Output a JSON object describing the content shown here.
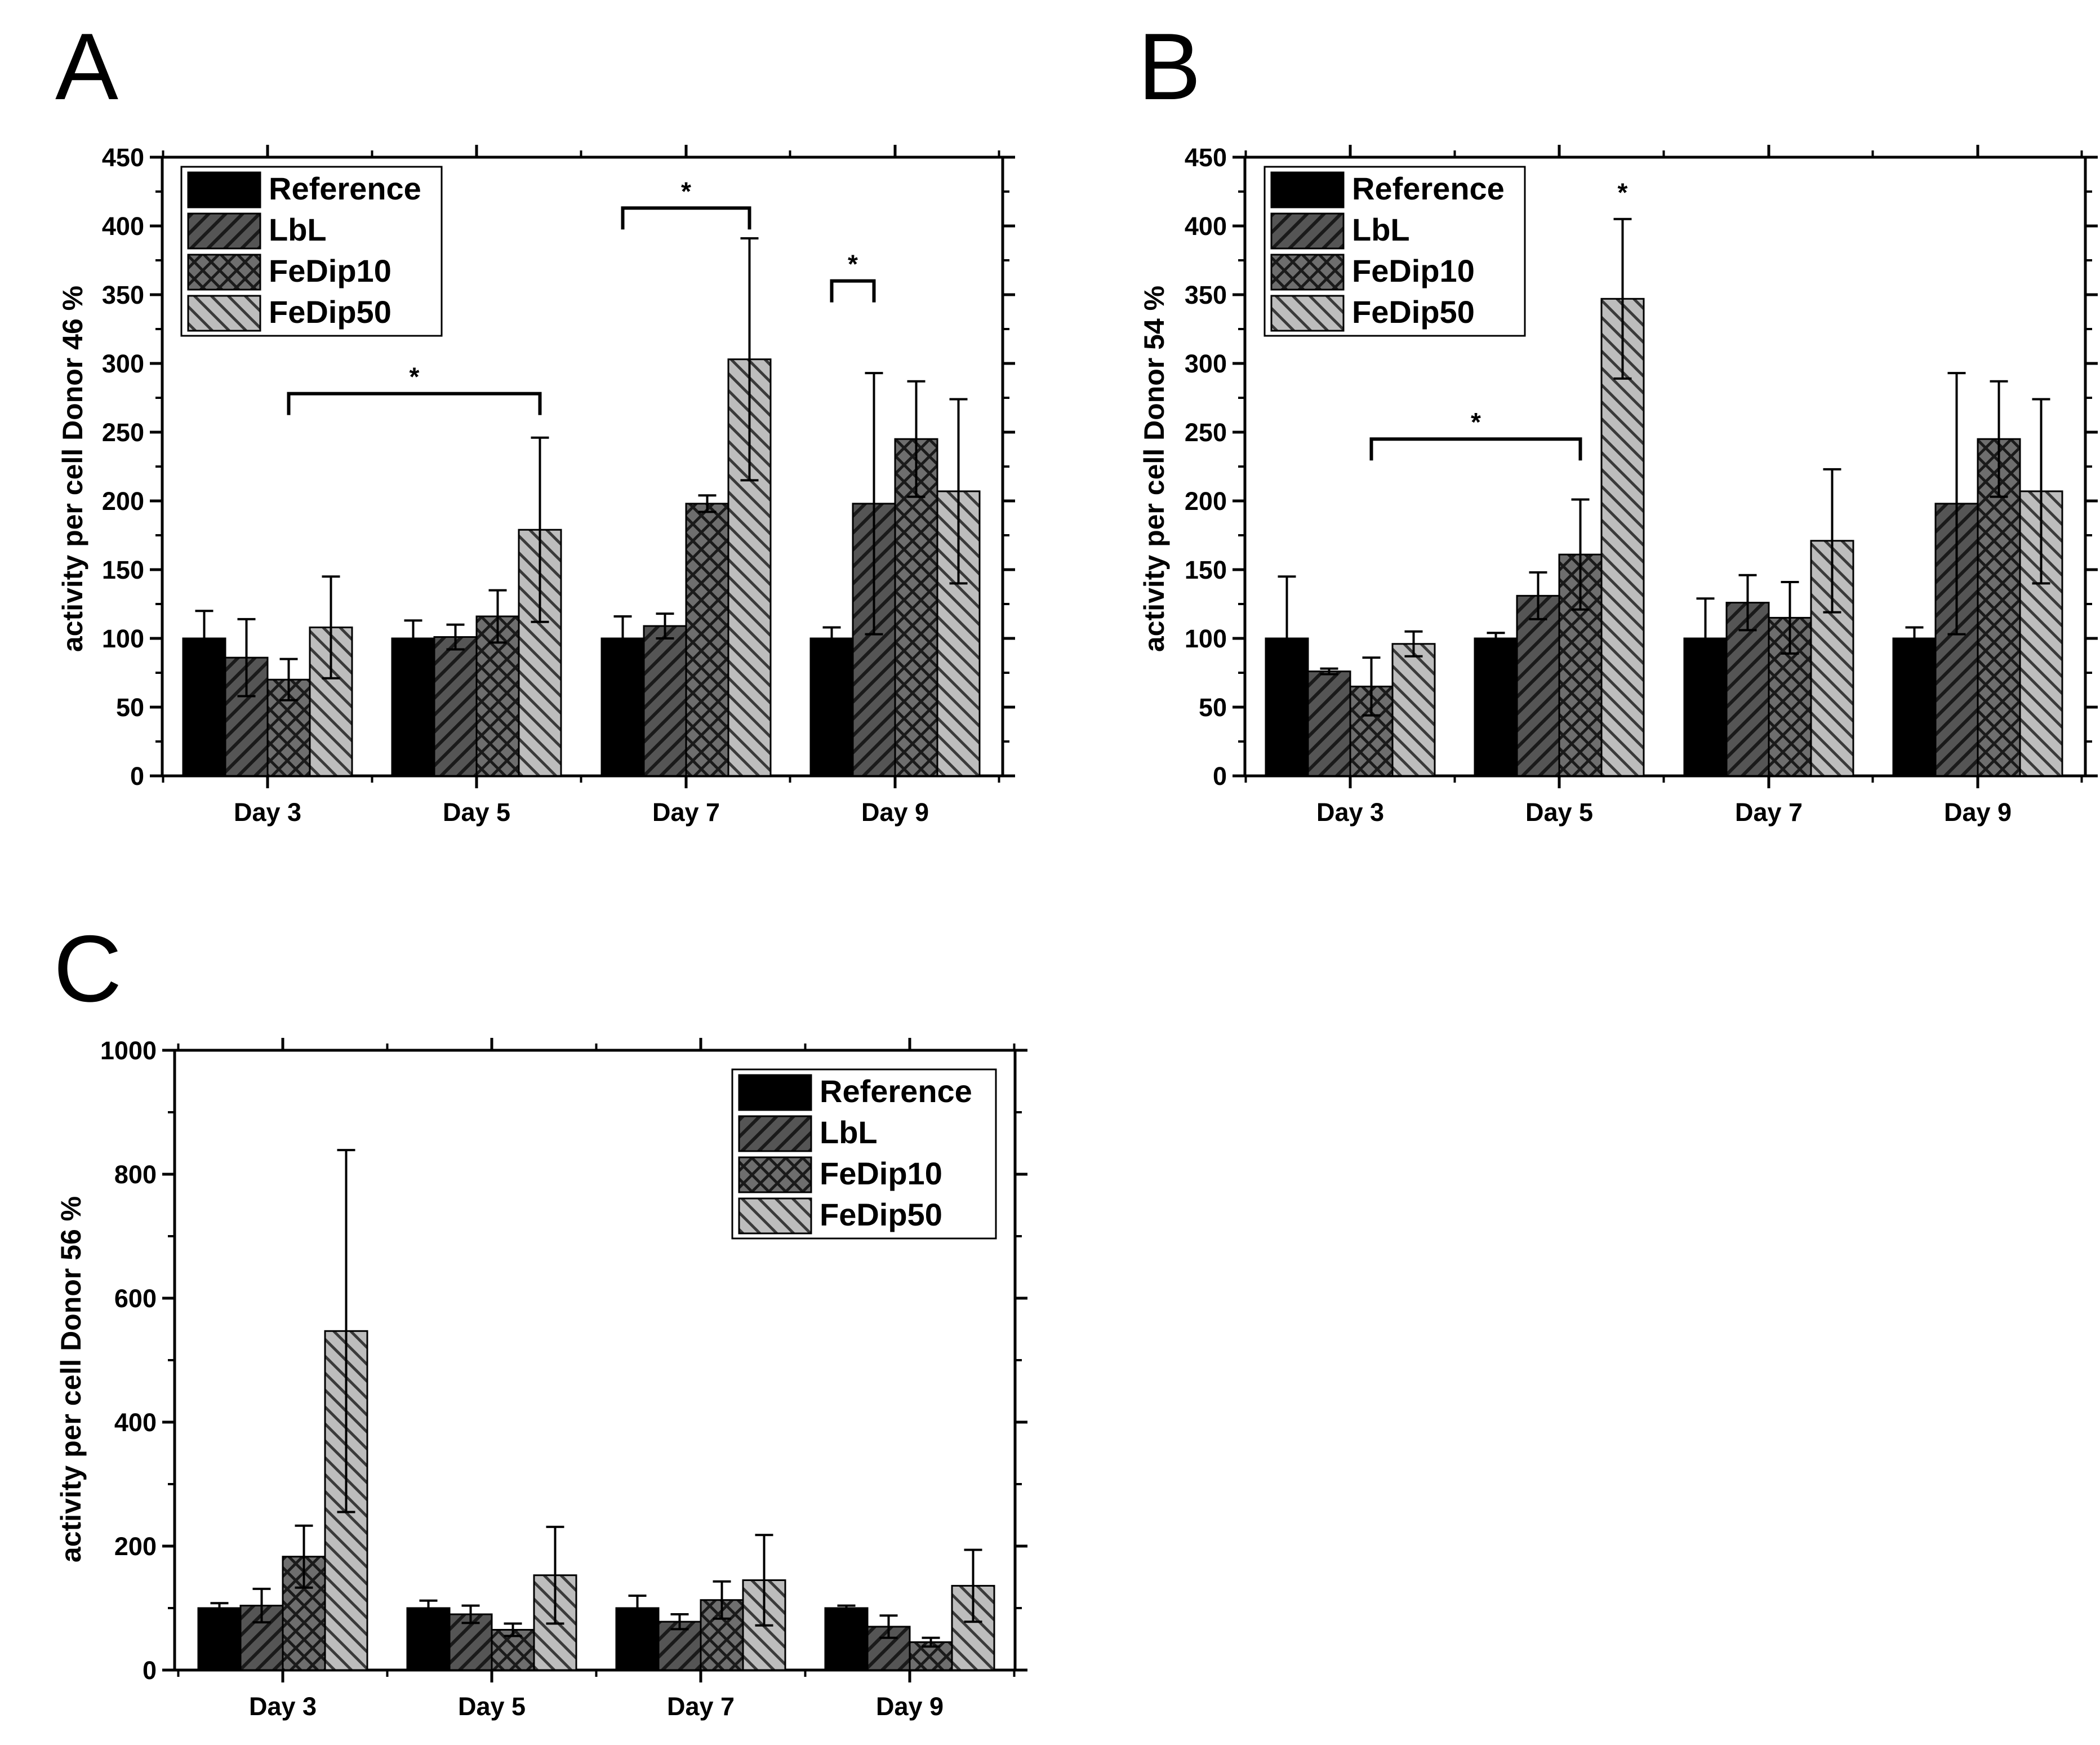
{
  "panels": [
    {
      "letter": "A",
      "chart_data": {
        "type": "bar",
        "title": "",
        "xlabel": "",
        "ylabel": "activity per cell Donor 46 %",
        "ylim": [
          0,
          450
        ],
        "yticks": [
          0,
          50,
          100,
          150,
          200,
          250,
          300,
          350,
          400,
          450
        ],
        "categories": [
          "Day 3",
          "Day 5",
          "Day 7",
          "Day 9"
        ],
        "series": [
          {
            "name": "Reference",
            "values": [
              100,
              100,
              100,
              100
            ],
            "errors": [
              20,
              13,
              16,
              8
            ]
          },
          {
            "name": "LbL",
            "values": [
              86,
              101,
              109,
              198
            ],
            "errors": [
              28,
              9,
              9,
              95
            ]
          },
          {
            "name": "FeDip10",
            "values": [
              70,
              116,
              198,
              245
            ],
            "errors": [
              15,
              19,
              6,
              42
            ]
          },
          {
            "name": "FeDip50",
            "values": [
              108,
              179,
              303,
              207
            ],
            "errors": [
              37,
              67,
              88,
              67
            ]
          }
        ],
        "legend": "top-left",
        "significance": [
          {
            "label": "*",
            "from_category": "Day 3",
            "from_series": "FeDip10",
            "to_category": "Day 5",
            "to_series": "FeDip50",
            "level": 278
          },
          {
            "label": "*",
            "from_category": "Day 7",
            "from_series": "Reference",
            "to_category": "Day 7",
            "to_series": "FeDip50",
            "level": 413
          },
          {
            "label": "*",
            "from_category": "Day 9",
            "from_series": "Reference",
            "to_category": "Day 9",
            "to_series": "LbL",
            "level": 360
          }
        ]
      }
    },
    {
      "letter": "B",
      "chart_data": {
        "type": "bar",
        "title": "",
        "xlabel": "",
        "ylabel": "activity per cell Donor 54 %",
        "ylim": [
          0,
          450
        ],
        "yticks": [
          0,
          50,
          100,
          150,
          200,
          250,
          300,
          350,
          400,
          450
        ],
        "categories": [
          "Day 3",
          "Day 5",
          "Day 7",
          "Day 9"
        ],
        "series": [
          {
            "name": "Reference",
            "values": [
              100,
              100,
              100,
              100
            ],
            "errors": [
              45,
              4,
              29,
              8
            ]
          },
          {
            "name": "LbL",
            "values": [
              76,
              131,
              126,
              198
            ],
            "errors": [
              2,
              17,
              20,
              95
            ]
          },
          {
            "name": "FeDip10",
            "values": [
              65,
              161,
              115,
              245
            ],
            "errors": [
              21,
              40,
              26,
              42
            ]
          },
          {
            "name": "FeDip50",
            "values": [
              96,
              347,
              171,
              207
            ],
            "errors": [
              9,
              58,
              52,
              67
            ]
          }
        ],
        "legend": "top-left",
        "significance": [
          {
            "label": "*",
            "from_category": "Day 3",
            "from_series": "FeDip10",
            "to_category": "Day 5",
            "to_series": "FeDip10",
            "level": 245
          }
        ],
        "annotations": [
          {
            "label": "*",
            "category": "Day 5",
            "series": "FeDip50",
            "level": 422
          }
        ]
      }
    },
    {
      "letter": "C",
      "chart_data": {
        "type": "bar",
        "title": "",
        "xlabel": "",
        "ylabel": "activity per cell Donor 56 %",
        "ylim": [
          0,
          1000
        ],
        "yticks": [
          0,
          200,
          400,
          600,
          800,
          1000
        ],
        "categories": [
          "Day 3",
          "Day 5",
          "Day 7",
          "Day 9"
        ],
        "series": [
          {
            "name": "Reference",
            "values": [
              100,
              100,
              100,
              100
            ],
            "errors": [
              8,
              12,
              20,
              4
            ]
          },
          {
            "name": "LbL",
            "values": [
              104,
              90,
              78,
              70
            ],
            "errors": [
              27,
              14,
              12,
              18
            ]
          },
          {
            "name": "FeDip10",
            "values": [
              183,
              65,
              113,
              45
            ],
            "errors": [
              50,
              10,
              30,
              7
            ]
          },
          {
            "name": "FeDip50",
            "values": [
              547,
              153,
              145,
              136
            ],
            "errors": [
              292,
              78,
              73,
              58
            ]
          }
        ],
        "legend": "top-right",
        "significance": []
      }
    }
  ]
}
